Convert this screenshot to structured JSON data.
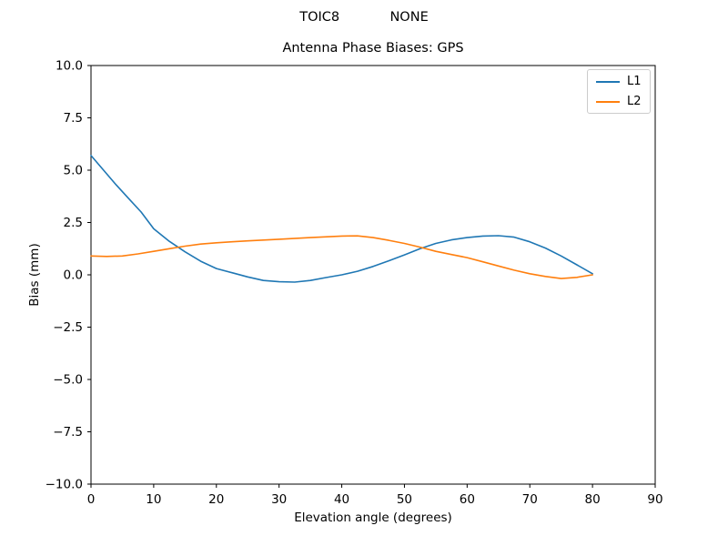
{
  "chart_data": {
    "type": "line",
    "suptitle": "TOIC8            NONE",
    "title": "Antenna Phase Biases: GPS",
    "xlabel": "Elevation angle (degrees)",
    "ylabel": "Bias (mm)",
    "xlim": [
      0,
      90
    ],
    "ylim": [
      -10,
      10
    ],
    "x_ticks": [
      0,
      10,
      20,
      30,
      40,
      50,
      60,
      70,
      80,
      90
    ],
    "x_tick_labels": [
      "0",
      "10",
      "20",
      "30",
      "40",
      "50",
      "60",
      "70",
      "80",
      "90"
    ],
    "y_ticks": [
      10,
      7.5,
      5,
      2.5,
      0,
      -2.5,
      -5,
      -7.5,
      -10
    ],
    "y_tick_labels": [
      "10.0",
      "7.5",
      "5.0",
      "2.5",
      "0.0",
      "−2.5",
      "−5.0",
      "−7.5",
      "−10.0"
    ],
    "grid": false,
    "legend_position": "upper right",
    "series": [
      {
        "name": "L1",
        "color": "#1f77b4",
        "x": [
          0,
          2,
          4,
          6,
          8,
          10,
          12.5,
          15,
          17.5,
          20,
          22.5,
          25,
          27.5,
          30,
          32.5,
          35,
          37.5,
          40,
          42.5,
          45,
          47.5,
          50,
          52.5,
          55,
          57.5,
          60,
          62.5,
          65,
          67.5,
          70,
          72.5,
          75,
          77.5,
          80
        ],
        "y": [
          5.7,
          5.0,
          4.3,
          3.65,
          3.0,
          2.2,
          1.6,
          1.1,
          0.65,
          0.3,
          0.1,
          -0.1,
          -0.27,
          -0.33,
          -0.35,
          -0.27,
          -0.13,
          0.0,
          0.17,
          0.4,
          0.67,
          0.95,
          1.25,
          1.5,
          1.67,
          1.78,
          1.85,
          1.87,
          1.8,
          1.58,
          1.28,
          0.9,
          0.48,
          0.05
        ]
      },
      {
        "name": "L2",
        "color": "#ff7f0e",
        "x": [
          0,
          2.5,
          5,
          7.5,
          10,
          12.5,
          15,
          17.5,
          20,
          22.5,
          25,
          30,
          35,
          40,
          42.5,
          45,
          47.5,
          50,
          52.5,
          55,
          57.5,
          60,
          62.5,
          65,
          67.5,
          70,
          72.5,
          75,
          77.5,
          80
        ],
        "y": [
          0.9,
          0.88,
          0.9,
          1.0,
          1.12,
          1.25,
          1.37,
          1.47,
          1.53,
          1.58,
          1.62,
          1.7,
          1.78,
          1.85,
          1.86,
          1.78,
          1.65,
          1.5,
          1.32,
          1.12,
          0.97,
          0.82,
          0.62,
          0.42,
          0.22,
          0.05,
          -0.08,
          -0.18,
          -0.12,
          0.0
        ]
      }
    ]
  }
}
